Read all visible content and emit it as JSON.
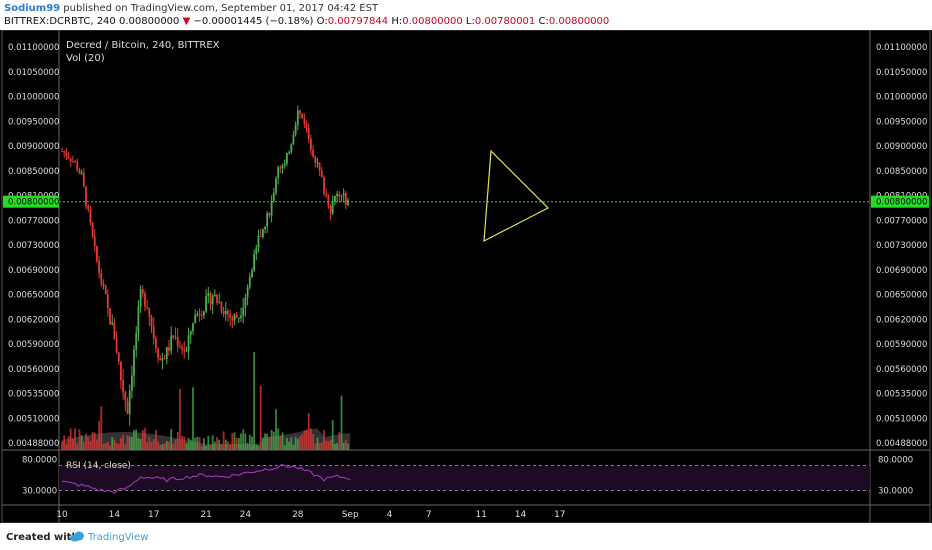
{
  "header": {
    "author": "Sodium99",
    "published": " published on TradingView.com, September 01, 2017 04:42 EST",
    "symbol": "BITTREX:DCRBTC, 240",
    "last": "0.00800000",
    "change_arrow": "▼",
    "change": "−0.00001445 (−0.18%)",
    "o_label": "O:",
    "o_value": "0.00797844",
    "h_label": "H:",
    "h_value": "0.00800000",
    "l_label": "L:",
    "l_value": "0.00780001",
    "c_label": "C:",
    "c_value": "0.00800000"
  },
  "chart_data": {
    "type": "candlestick",
    "title": "Decred / Bitcoin, 240, BITTREX",
    "indicator_labels": [
      "Vol (20)"
    ],
    "y_ticks": [
      "0.01100000",
      "0.01050000",
      "0.01000000",
      "0.00950000",
      "0.00900000",
      "0.00850000",
      "0.00810000",
      "0.00770000",
      "0.00730000",
      "0.00690000",
      "0.00650000",
      "0.00620000",
      "0.00590000",
      "0.00560000",
      "0.00535000",
      "0.00510000",
      "0.00488000"
    ],
    "current_price_label": "0.00800000",
    "current_price": 0.008,
    "x_ticks": [
      "10",
      "14",
      "17",
      "21",
      "24",
      "28",
      "Sep",
      "4",
      "7",
      "11",
      "14",
      "17"
    ],
    "price_series": [
      {
        "day": 10.0,
        "close": 0.0089
      },
      {
        "day": 10.5,
        "close": 0.0088
      },
      {
        "day": 11.0,
        "close": 0.00865
      },
      {
        "day": 11.5,
        "close": 0.0084
      },
      {
        "day": 12.0,
        "close": 0.0078
      },
      {
        "day": 12.5,
        "close": 0.0072
      },
      {
        "day": 13.0,
        "close": 0.0067
      },
      {
        "day": 13.5,
        "close": 0.0063
      },
      {
        "day": 14.0,
        "close": 0.006
      },
      {
        "day": 14.5,
        "close": 0.0055
      },
      {
        "day": 15.0,
        "close": 0.0052
      },
      {
        "day": 15.5,
        "close": 0.0058
      },
      {
        "day": 16.0,
        "close": 0.0065
      },
      {
        "day": 16.5,
        "close": 0.0064
      },
      {
        "day": 17.0,
        "close": 0.006
      },
      {
        "day": 17.5,
        "close": 0.0057
      },
      {
        "day": 18.0,
        "close": 0.0058
      },
      {
        "day": 18.5,
        "close": 0.006
      },
      {
        "day": 19.0,
        "close": 0.0059
      },
      {
        "day": 19.5,
        "close": 0.0058
      },
      {
        "day": 20.0,
        "close": 0.0062
      },
      {
        "day": 20.5,
        "close": 0.0063
      },
      {
        "day": 21.0,
        "close": 0.0064
      },
      {
        "day": 21.5,
        "close": 0.0065
      },
      {
        "day": 22.0,
        "close": 0.0064
      },
      {
        "day": 22.5,
        "close": 0.0063
      },
      {
        "day": 23.0,
        "close": 0.0062
      },
      {
        "day": 23.5,
        "close": 0.00625
      },
      {
        "day": 24.0,
        "close": 0.0065
      },
      {
        "day": 24.5,
        "close": 0.0069
      },
      {
        "day": 25.0,
        "close": 0.0074
      },
      {
        "day": 25.5,
        "close": 0.0076
      },
      {
        "day": 26.0,
        "close": 0.008
      },
      {
        "day": 26.5,
        "close": 0.0086
      },
      {
        "day": 27.0,
        "close": 0.0086
      },
      {
        "day": 27.5,
        "close": 0.0091
      },
      {
        "day": 28.0,
        "close": 0.0097
      },
      {
        "day": 28.5,
        "close": 0.0095
      },
      {
        "day": 29.0,
        "close": 0.009
      },
      {
        "day": 29.5,
        "close": 0.0086
      },
      {
        "day": 30.0,
        "close": 0.0082
      },
      {
        "day": 30.5,
        "close": 0.0079
      },
      {
        "day": 31.0,
        "close": 0.0081
      },
      {
        "day": 31.5,
        "close": 0.00805
      },
      {
        "day": 32.0,
        "close": 0.008
      }
    ],
    "volume_label": "Vol (20)",
    "rsi": {
      "label": "RSI (14, close)",
      "y_ticks": [
        "80.0000",
        "30.0000"
      ],
      "bands": [
        70,
        30
      ],
      "values": [
        {
          "day": 10,
          "value": 44
        },
        {
          "day": 11,
          "value": 40
        },
        {
          "day": 12,
          "value": 36
        },
        {
          "day": 13,
          "value": 30
        },
        {
          "day": 14,
          "value": 28
        },
        {
          "day": 15,
          "value": 34
        },
        {
          "day": 16,
          "value": 52
        },
        {
          "day": 17,
          "value": 50
        },
        {
          "day": 18,
          "value": 47
        },
        {
          "day": 19,
          "value": 50
        },
        {
          "day": 20,
          "value": 53
        },
        {
          "day": 21,
          "value": 55
        },
        {
          "day": 22,
          "value": 52
        },
        {
          "day": 23,
          "value": 54
        },
        {
          "day": 24,
          "value": 58
        },
        {
          "day": 25,
          "value": 62
        },
        {
          "day": 26,
          "value": 66
        },
        {
          "day": 27,
          "value": 70
        },
        {
          "day": 28,
          "value": 66
        },
        {
          "day": 29,
          "value": 58
        },
        {
          "day": 30,
          "value": 48
        },
        {
          "day": 31,
          "value": 52
        },
        {
          "day": 32,
          "value": 50
        }
      ]
    }
  },
  "footer": {
    "created": "Created with",
    "brand": "TradingView"
  },
  "colors": {
    "up": "#4caf50",
    "down": "#e53935",
    "price_line": "#22dd22",
    "triangle": "#e8e05a",
    "rsi": "#b03ac8"
  }
}
